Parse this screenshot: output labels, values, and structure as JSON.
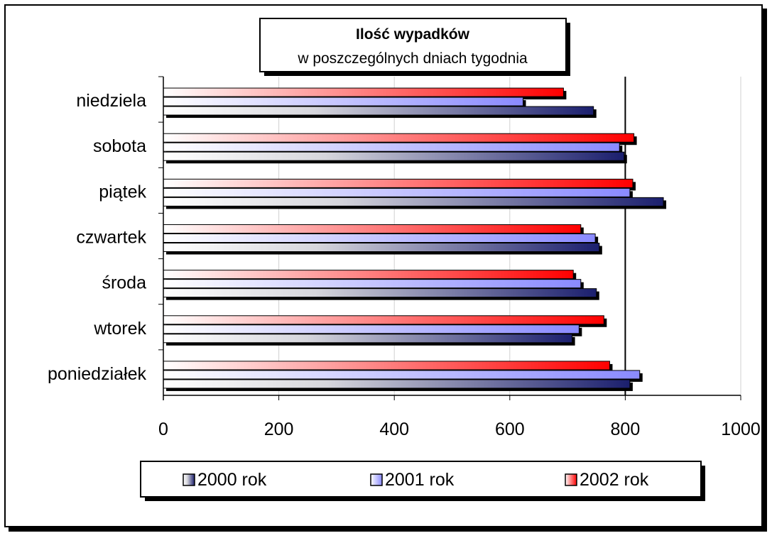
{
  "chart_data": {
    "type": "bar",
    "orientation": "horizontal",
    "title": "Ilość wypadków",
    "subtitle": "w poszczególnych  dniach tygodnia",
    "categories": [
      "poniedziałek",
      "wtorek",
      "środa",
      "czwartek",
      "piątek",
      "sobota",
      "niedziela"
    ],
    "series": [
      {
        "name": "2000 rok",
        "values": [
          808,
          708,
          750,
          755,
          866,
          798,
          745
        ]
      },
      {
        "name": "2001 rok",
        "values": [
          825,
          720,
          723,
          748,
          808,
          790,
          623
        ]
      },
      {
        "name": "2002 rok",
        "values": [
          773,
          763,
          710,
          723,
          813,
          815,
          693
        ]
      }
    ],
    "xlim": [
      0,
      1000
    ],
    "xticks": [
      "0",
      "200",
      "400",
      "600",
      "800",
      "1000"
    ],
    "grid": "vertical at 800",
    "legend_position": "bottom",
    "colors": {
      "2000 rok": [
        "#ffffff",
        "#1b1f6e"
      ],
      "2001 rok": [
        "#ffffff",
        "#8a8aff"
      ],
      "2002 rok": [
        "#ffffff",
        "#ff0000"
      ]
    }
  }
}
